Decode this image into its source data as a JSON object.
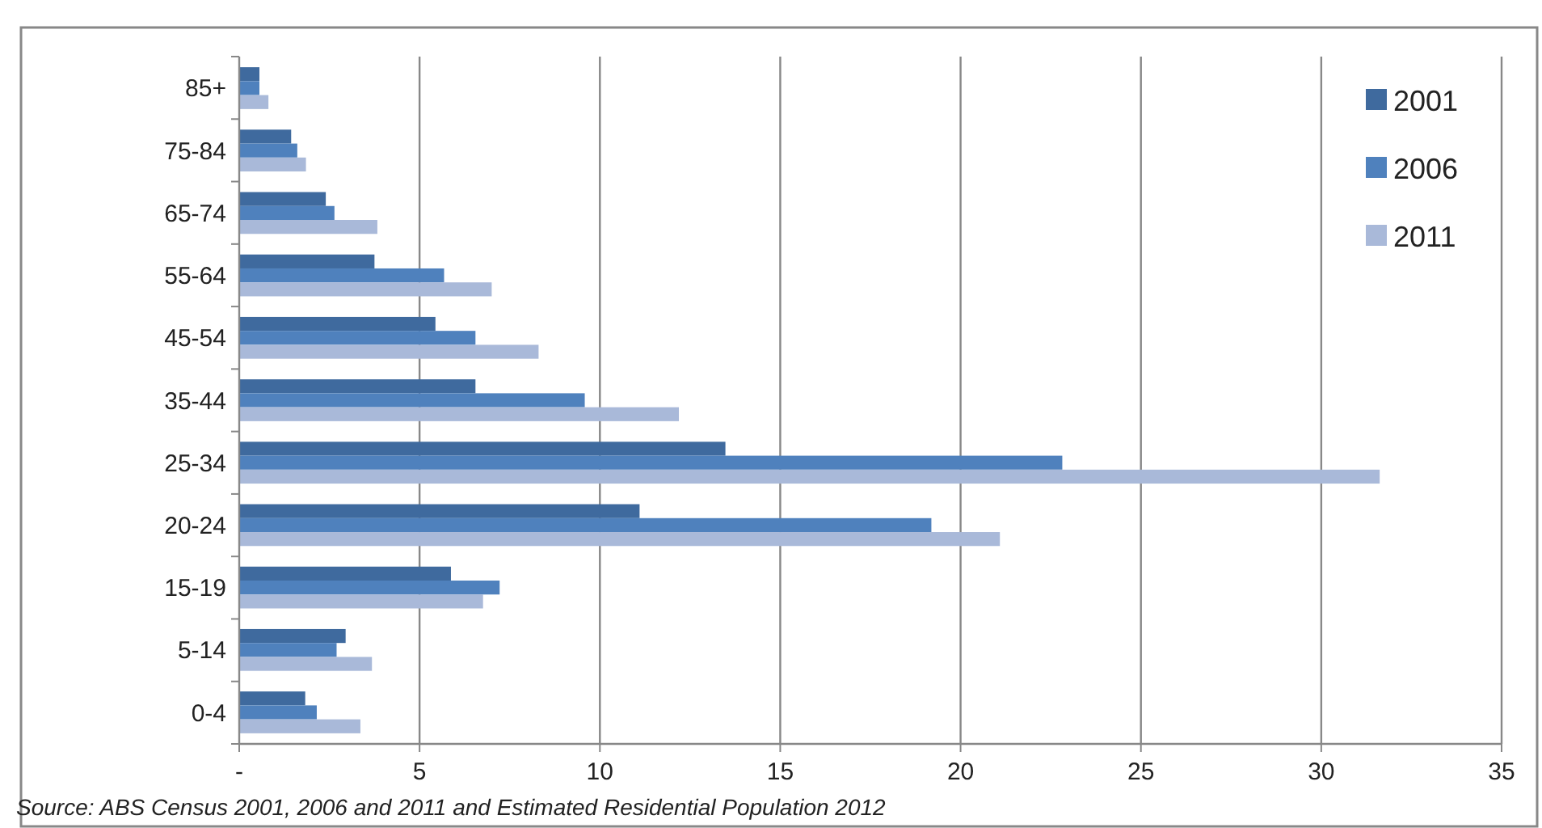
{
  "chart_data": {
    "type": "bar",
    "orientation": "horizontal",
    "categories": [
      "85+",
      "75-84",
      "65-74",
      "55-64",
      "45-54",
      "35-44",
      "25-34",
      "20-24",
      "15-19",
      "5-14",
      "0-4"
    ],
    "series": [
      {
        "name": "2001",
        "color": "#3f6a9e",
        "values": [
          0.56,
          1.44,
          2.4,
          3.75,
          5.44,
          6.55,
          13.48,
          11.1,
          5.87,
          2.95,
          1.83
        ]
      },
      {
        "name": "2006",
        "color": "#4f81bd",
        "values": [
          0.56,
          1.61,
          2.64,
          5.68,
          6.55,
          9.58,
          22.82,
          19.19,
          7.22,
          2.7,
          2.15
        ]
      },
      {
        "name": "2011",
        "color": "#a9b9d9",
        "values": [
          0.81,
          1.85,
          3.83,
          7.0,
          8.3,
          12.19,
          31.62,
          21.09,
          6.76,
          3.68,
          3.36
        ]
      }
    ],
    "xlim": [
      0,
      35
    ],
    "xticks": [
      {
        "value": 0,
        "label": "-"
      },
      5,
      10,
      15,
      20,
      25,
      30,
      35
    ],
    "grid": "x",
    "legend": "right",
    "annotations": [
      "Source: ABS Census 2001, 2006 and 2011 and Estimated Residential Population 2012"
    ]
  }
}
